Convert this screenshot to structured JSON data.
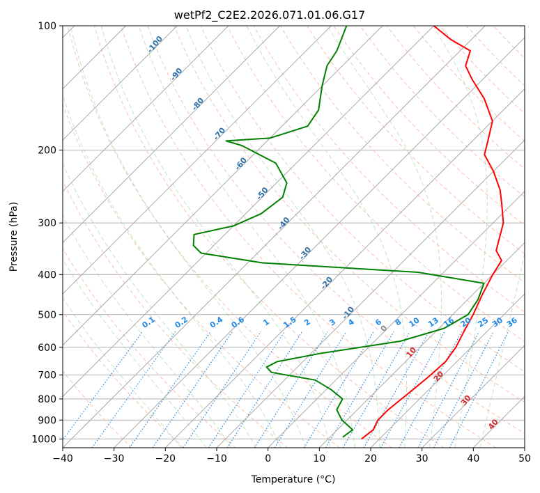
{
  "chart_data": {
    "type": "line",
    "title": "wetPf2_C2E2.2026.071.01.06.G17",
    "xlabel": "Temperature (°C)",
    "ylabel": "Pressure (hPa)",
    "xlim": [
      -40,
      50
    ],
    "ylim": [
      1050,
      100
    ],
    "y_scale": "log",
    "grid": true,
    "x_ticks": [
      -40,
      -30,
      -20,
      -10,
      0,
      10,
      20,
      30,
      40,
      50
    ],
    "y_ticks": [
      100,
      200,
      300,
      400,
      500,
      600,
      700,
      800,
      900,
      1000
    ],
    "background_lines": {
      "skewed_isotherms": "grey solid",
      "dry_adiabats": "salmon dashed",
      "moist_adiabats": "light green dashed",
      "mixing_ratio_lines": "blue dotted"
    },
    "mixing_ratio_labels": [
      "0.1",
      "0.2",
      "0.4",
      "0.6",
      "1",
      "1.5",
      "2",
      "3",
      "4",
      "6",
      "8",
      "10",
      "13",
      "16",
      "20",
      "25",
      "30",
      "36"
    ],
    "isotherm_labels_upper": [
      "-100",
      "-90",
      "-80",
      "-70",
      "-60",
      "-50",
      "-40",
      "-30",
      "-20",
      "-10"
    ],
    "isotherm_labels_lower": [
      "0",
      "10",
      "20",
      "30",
      "40"
    ],
    "series": [
      {
        "color": "#ff0000",
        "points": [
          [
            16.5,
            1000
          ],
          [
            17.0,
            950
          ],
          [
            16.0,
            900
          ],
          [
            16.0,
            850
          ],
          [
            16.5,
            800
          ],
          [
            17.0,
            750
          ],
          [
            17.5,
            700
          ],
          [
            17.8,
            650
          ],
          [
            17.0,
            600
          ],
          [
            15.5,
            550
          ],
          [
            14.0,
            500
          ],
          [
            12.0,
            450
          ],
          [
            10.0,
            400
          ],
          [
            9.0,
            370
          ],
          [
            6.0,
            350
          ],
          [
            2.0,
            300
          ],
          [
            -2.0,
            270
          ],
          [
            -5.0,
            250
          ],
          [
            -10.0,
            225
          ],
          [
            -15.0,
            205
          ],
          [
            -17.0,
            190
          ],
          [
            -20.0,
            170
          ],
          [
            -26.0,
            150
          ],
          [
            -32.0,
            135
          ],
          [
            -36.0,
            125
          ],
          [
            -38.0,
            115
          ],
          [
            -44.0,
            108
          ],
          [
            -50.0,
            100
          ]
        ]
      },
      {
        "color": "#008000",
        "points": [
          [
            12.5,
            990
          ],
          [
            13.0,
            950
          ],
          [
            9.0,
            900
          ],
          [
            6.0,
            850
          ],
          [
            5.0,
            800
          ],
          [
            1.0,
            760
          ],
          [
            -4.0,
            720
          ],
          [
            -14.0,
            690
          ],
          [
            -16.0,
            670
          ],
          [
            -15.0,
            650
          ],
          [
            -8.0,
            620
          ],
          [
            5.0,
            580
          ],
          [
            11.0,
            540
          ],
          [
            13.0,
            500
          ],
          [
            12.0,
            460
          ],
          [
            10.0,
            420
          ],
          [
            -5.0,
            395
          ],
          [
            -37.0,
            375
          ],
          [
            -51.0,
            355
          ],
          [
            -54.0,
            340
          ],
          [
            -56.0,
            320
          ],
          [
            -50.0,
            305
          ],
          [
            -47.0,
            285
          ],
          [
            -46.0,
            260
          ],
          [
            -48.0,
            240
          ],
          [
            -54.0,
            215
          ],
          [
            -64.0,
            195
          ],
          [
            -68.0,
            190
          ],
          [
            -60.0,
            187
          ],
          [
            -55.0,
            175
          ],
          [
            -56.0,
            160
          ],
          [
            -60.0,
            140
          ],
          [
            -63.0,
            125
          ],
          [
            -64.0,
            115
          ],
          [
            -67.0,
            100
          ]
        ]
      }
    ]
  }
}
